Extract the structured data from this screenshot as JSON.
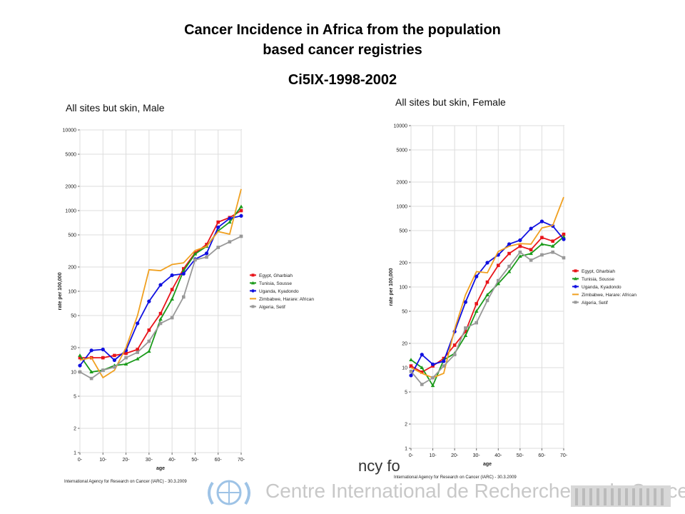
{
  "slide": {
    "title_line1": "Cancer Incidence in Africa  from the population",
    "title_line2": "based cancer registries",
    "subtitle": "Ci5IX-1998-2002"
  },
  "footer": {
    "fragment": "ncy fo",
    "institution": "Centre International de Recherche sur le Cancer"
  },
  "chart_data": [
    {
      "type": "line",
      "title": "All sites but skin, Male",
      "xlabel": "age",
      "ylabel": "rate per 100,000",
      "y_scale": "log",
      "ylim": [
        1,
        10000
      ],
      "y_ticks": [
        "1",
        "2",
        "5",
        "10",
        "20",
        "50",
        "100",
        "200",
        "500",
        "1000",
        "2000",
        "5000",
        "10000"
      ],
      "x_ticks": [
        "0-",
        "10-",
        "20-",
        "30-",
        "40-",
        "50-",
        "60-",
        "70-"
      ],
      "x": [
        0,
        5,
        10,
        15,
        20,
        25,
        30,
        35,
        40,
        45,
        50,
        55,
        60,
        65,
        70
      ],
      "grid": true,
      "legend_position": "right",
      "source": "International Agency for Research on Cancer (IARC) - 30.3.2009",
      "series": [
        {
          "name": "Egypt, Gharbiah",
          "color": "#e8141a",
          "marker": "square",
          "values": [
            15,
            15,
            15,
            16,
            17,
            19,
            33,
            53,
            105,
            190,
            300,
            380,
            720,
            820,
            1000
          ]
        },
        {
          "name": "Tunisia, Sousse",
          "color": "#1a9a1a",
          "marker": "triangle",
          "values": [
            16,
            10,
            10.5,
            12,
            12.5,
            14.5,
            18,
            45,
            80,
            180,
            290,
            360,
            560,
            720,
            1120
          ]
        },
        {
          "name": "Uganda, Kyadondo",
          "color": "#1010e0",
          "marker": "circle",
          "values": [
            12,
            18.5,
            19,
            14,
            18.5,
            40,
            75,
            120,
            158,
            165,
            250,
            295,
            620,
            800,
            860
          ]
        },
        {
          "name": "Zimbabwe, Harare: African",
          "color": "#f0a020",
          "marker": "none",
          "values": [
            14,
            15,
            8.5,
            10.5,
            20,
            50,
            185,
            180,
            215,
            225,
            320,
            360,
            550,
            510,
            1850
          ]
        },
        {
          "name": "Algeria, Setif",
          "color": "#999999",
          "marker": "square",
          "values": [
            10,
            8.3,
            10.5,
            11.5,
            15,
            17.5,
            24,
            40,
            47,
            85,
            245,
            265,
            350,
            410,
            480
          ]
        }
      ]
    },
    {
      "type": "line",
      "title": "All sites but skin, Female",
      "xlabel": "age",
      "ylabel": "rate per 100,000",
      "y_scale": "log",
      "ylim": [
        1,
        10000
      ],
      "y_ticks": [
        "1",
        "2",
        "5",
        "10",
        "20",
        "50",
        "100",
        "200",
        "500",
        "1000",
        "2000",
        "5000",
        "10000"
      ],
      "x_ticks": [
        "0-",
        "10-",
        "20-",
        "30-",
        "40-",
        "50-",
        "60-",
        "70-"
      ],
      "x": [
        0,
        5,
        10,
        15,
        20,
        25,
        30,
        35,
        40,
        45,
        50,
        55,
        60,
        65,
        70
      ],
      "grid": true,
      "legend_position": "right",
      "source": "International Agency for Research on Cancer (IARC) - 30.3.2009",
      "series": [
        {
          "name": "Egypt, Gharbiah",
          "color": "#e8141a",
          "marker": "square",
          "values": [
            10.5,
            8.8,
            10.5,
            13,
            19,
            28,
            62,
            115,
            185,
            260,
            320,
            290,
            410,
            370,
            450
          ]
        },
        {
          "name": "Tunisia, Sousse",
          "color": "#1a9a1a",
          "marker": "triangle",
          "values": [
            12.5,
            10,
            6,
            12.5,
            15,
            25,
            50,
            80,
            110,
            155,
            240,
            260,
            340,
            320,
            420
          ]
        },
        {
          "name": "Uganda, Kyadondo",
          "color": "#1010e0",
          "marker": "circle",
          "values": [
            8,
            14.5,
            11,
            12,
            28,
            65,
            135,
            200,
            250,
            340,
            380,
            530,
            650,
            570,
            390
          ]
        },
        {
          "name": "Zimbabwe, Harare: African",
          "color": "#f0a020",
          "marker": "none",
          "values": [
            10,
            8.5,
            7.5,
            8.5,
            30,
            80,
            155,
            150,
            275,
            320,
            345,
            340,
            540,
            580,
            1300
          ]
        },
        {
          "name": "Algeria, Setif",
          "color": "#999999",
          "marker": "square",
          "values": [
            9,
            6.2,
            7.5,
            10.5,
            14.5,
            31,
            36,
            68,
            120,
            180,
            270,
            215,
            250,
            270,
            230
          ]
        }
      ]
    }
  ]
}
